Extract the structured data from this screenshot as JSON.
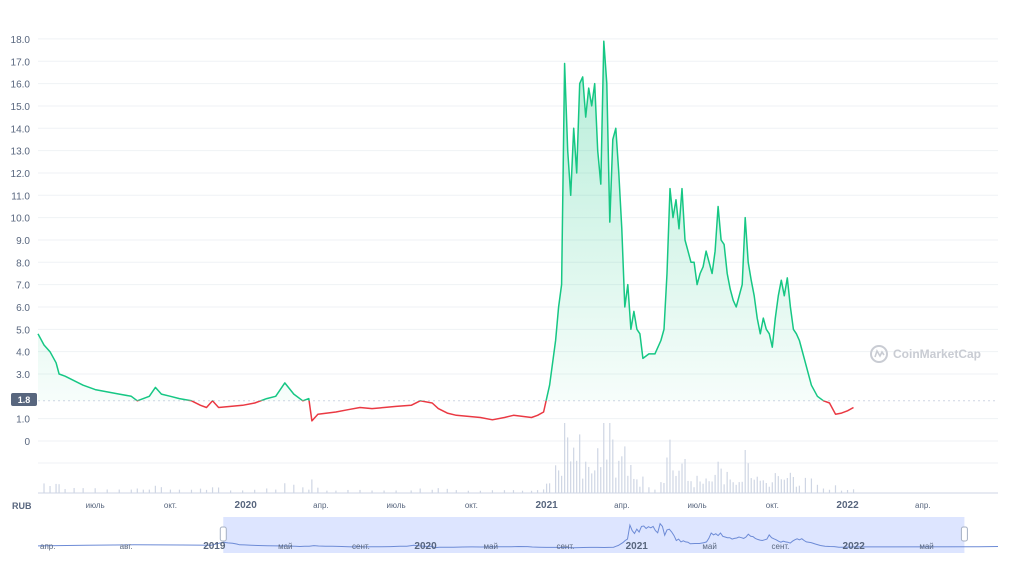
{
  "watermark": "CoinMarketCap",
  "currency_unit": "RUB",
  "current_price_label": "1.8",
  "colors": {
    "up": "#16c784",
    "down": "#ea3943",
    "area_top": "#16c784",
    "grid": "#eff2f5",
    "volume": "#cfd6e4",
    "navigator_fill": "#dde5ff",
    "navigator_line": "#6d8bd6",
    "label_bg": "#58667e"
  },
  "chart_data": {
    "type": "line",
    "title": "",
    "xlabel": "",
    "ylabel": "",
    "y_tick_labels": [
      "0",
      "1.0",
      "1.8",
      "3.0",
      "4.0",
      "5.0",
      "6.0",
      "7.0",
      "8.0",
      "9.0",
      "10.0",
      "11.0",
      "12.0",
      "13.0",
      "14.0",
      "15.0",
      "16.0",
      "17.0",
      "18.0"
    ],
    "ylim": [
      0,
      18.4
    ],
    "baseline_price": 1.8,
    "x_tick_labels": [
      {
        "label": "июль",
        "x": 2019.5,
        "year": false
      },
      {
        "label": "окт.",
        "x": 2019.75,
        "year": false
      },
      {
        "label": "2020",
        "x": 2020.0,
        "year": true
      },
      {
        "label": "апр.",
        "x": 2020.25,
        "year": false
      },
      {
        "label": "июль",
        "x": 2020.5,
        "year": false
      },
      {
        "label": "окт.",
        "x": 2020.75,
        "year": false
      },
      {
        "label": "2021",
        "x": 2021.0,
        "year": true
      },
      {
        "label": "апр.",
        "x": 2021.25,
        "year": false
      },
      {
        "label": "июль",
        "x": 2021.5,
        "year": false
      },
      {
        "label": "окт.",
        "x": 2021.75,
        "year": false
      },
      {
        "label": "2022",
        "x": 2022.0,
        "year": true
      },
      {
        "label": "апр.",
        "x": 2022.25,
        "year": false
      }
    ],
    "xlim": [
      2019.31,
      2022.5
    ],
    "grid": true,
    "series": [
      {
        "values": [
          [
            2019.31,
            4.8
          ],
          [
            2019.33,
            4.3
          ],
          [
            2019.35,
            4.0
          ],
          [
            2019.37,
            3.5
          ],
          [
            2019.38,
            3.0
          ],
          [
            2019.4,
            2.9
          ],
          [
            2019.43,
            2.7
          ],
          [
            2019.46,
            2.5
          ],
          [
            2019.5,
            2.3
          ],
          [
            2019.54,
            2.2
          ],
          [
            2019.58,
            2.1
          ],
          [
            2019.62,
            2.0
          ],
          [
            2019.64,
            1.8
          ],
          [
            2019.66,
            1.9
          ],
          [
            2019.68,
            2.0
          ],
          [
            2019.7,
            2.4
          ],
          [
            2019.72,
            2.1
          ],
          [
            2019.75,
            2.0
          ],
          [
            2019.78,
            1.9
          ],
          [
            2019.82,
            1.8
          ],
          [
            2019.85,
            1.6
          ],
          [
            2019.87,
            1.5
          ],
          [
            2019.89,
            1.8
          ],
          [
            2019.91,
            1.5
          ],
          [
            2019.95,
            1.55
          ],
          [
            2019.99,
            1.6
          ],
          [
            2020.03,
            1.7
          ],
          [
            2020.07,
            1.9
          ],
          [
            2020.1,
            2.0
          ],
          [
            2020.13,
            2.6
          ],
          [
            2020.16,
            2.1
          ],
          [
            2020.19,
            1.8
          ],
          [
            2020.21,
            1.9
          ],
          [
            2020.22,
            0.9
          ],
          [
            2020.24,
            1.2
          ],
          [
            2020.27,
            1.25
          ],
          [
            2020.3,
            1.3
          ],
          [
            2020.34,
            1.4
          ],
          [
            2020.38,
            1.5
          ],
          [
            2020.42,
            1.45
          ],
          [
            2020.46,
            1.5
          ],
          [
            2020.5,
            1.55
          ],
          [
            2020.55,
            1.6
          ],
          [
            2020.58,
            1.8
          ],
          [
            2020.62,
            1.7
          ],
          [
            2020.64,
            1.45
          ],
          [
            2020.67,
            1.25
          ],
          [
            2020.7,
            1.15
          ],
          [
            2020.74,
            1.1
          ],
          [
            2020.78,
            1.05
          ],
          [
            2020.82,
            0.95
          ],
          [
            2020.86,
            1.05
          ],
          [
            2020.89,
            1.15
          ],
          [
            2020.92,
            1.1
          ],
          [
            2020.95,
            1.05
          ],
          [
            2020.97,
            1.15
          ],
          [
            2020.99,
            1.3
          ],
          [
            2021.0,
            1.9
          ],
          [
            2021.01,
            2.5
          ],
          [
            2021.03,
            4.5
          ],
          [
            2021.04,
            6.0
          ],
          [
            2021.05,
            7.0
          ],
          [
            2021.06,
            16.9
          ],
          [
            2021.07,
            13.0
          ],
          [
            2021.08,
            11.0
          ],
          [
            2021.09,
            14.0
          ],
          [
            2021.1,
            12.0
          ],
          [
            2021.11,
            16.0
          ],
          [
            2021.12,
            16.3
          ],
          [
            2021.13,
            14.5
          ],
          [
            2021.14,
            15.8
          ],
          [
            2021.15,
            15.0
          ],
          [
            2021.16,
            16.0
          ],
          [
            2021.17,
            13.0
          ],
          [
            2021.18,
            11.5
          ],
          [
            2021.19,
            17.9
          ],
          [
            2021.2,
            16.0
          ],
          [
            2021.21,
            9.8
          ],
          [
            2021.22,
            13.5
          ],
          [
            2021.23,
            14.0
          ],
          [
            2021.24,
            12.0
          ],
          [
            2021.25,
            9.5
          ],
          [
            2021.26,
            6.0
          ],
          [
            2021.27,
            7.0
          ],
          [
            2021.28,
            5.0
          ],
          [
            2021.29,
            5.8
          ],
          [
            2021.3,
            5.0
          ],
          [
            2021.31,
            4.8
          ],
          [
            2021.32,
            3.7
          ],
          [
            2021.34,
            3.9
          ],
          [
            2021.36,
            3.9
          ],
          [
            2021.38,
            4.5
          ],
          [
            2021.39,
            5.0
          ],
          [
            2021.4,
            7.5
          ],
          [
            2021.41,
            11.3
          ],
          [
            2021.42,
            10.0
          ],
          [
            2021.43,
            10.8
          ],
          [
            2021.44,
            9.5
          ],
          [
            2021.45,
            11.3
          ],
          [
            2021.46,
            9.0
          ],
          [
            2021.47,
            8.5
          ],
          [
            2021.48,
            8.0
          ],
          [
            2021.49,
            8.0
          ],
          [
            2021.5,
            7.0
          ],
          [
            2021.51,
            7.5
          ],
          [
            2021.52,
            7.8
          ],
          [
            2021.53,
            8.5
          ],
          [
            2021.54,
            8.0
          ],
          [
            2021.55,
            7.5
          ],
          [
            2021.56,
            8.5
          ],
          [
            2021.57,
            10.5
          ],
          [
            2021.58,
            9.0
          ],
          [
            2021.59,
            8.8
          ],
          [
            2021.6,
            7.5
          ],
          [
            2021.61,
            6.8
          ],
          [
            2021.62,
            6.3
          ],
          [
            2021.63,
            6.0
          ],
          [
            2021.64,
            6.5
          ],
          [
            2021.65,
            7.0
          ],
          [
            2021.66,
            10.0
          ],
          [
            2021.67,
            8.0
          ],
          [
            2021.68,
            7.2
          ],
          [
            2021.69,
            6.5
          ],
          [
            2021.7,
            5.5
          ],
          [
            2021.71,
            4.8
          ],
          [
            2021.72,
            5.5
          ],
          [
            2021.73,
            5.0
          ],
          [
            2021.74,
            4.8
          ],
          [
            2021.75,
            4.2
          ],
          [
            2021.76,
            5.5
          ],
          [
            2021.77,
            6.5
          ],
          [
            2021.78,
            7.2
          ],
          [
            2021.79,
            6.5
          ],
          [
            2021.8,
            7.3
          ],
          [
            2021.81,
            6.0
          ],
          [
            2021.82,
            5.0
          ],
          [
            2021.83,
            4.8
          ],
          [
            2021.84,
            4.5
          ],
          [
            2021.86,
            3.5
          ],
          [
            2021.88,
            2.5
          ],
          [
            2021.9,
            2.0
          ],
          [
            2021.92,
            1.8
          ],
          [
            2021.94,
            1.7
          ],
          [
            2021.96,
            1.2
          ],
          [
            2021.98,
            1.25
          ],
          [
            2022.0,
            1.35
          ],
          [
            2022.02,
            1.5
          ]
        ]
      }
    ],
    "navigator": {
      "tick_labels": [
        {
          "label": "апр.",
          "x": 0.0,
          "year": false
        },
        {
          "label": "авг.",
          "x": 0.083,
          "year": false
        },
        {
          "label": "2019",
          "x": 0.17,
          "year": true
        },
        {
          "label": "май",
          "x": 0.248,
          "year": false
        },
        {
          "label": "сент.",
          "x": 0.325,
          "year": false
        },
        {
          "label": "2020",
          "x": 0.39,
          "year": true
        },
        {
          "label": "май",
          "x": 0.462,
          "year": false
        },
        {
          "label": "сент.",
          "x": 0.538,
          "year": false
        },
        {
          "label": "2021",
          "x": 0.61,
          "year": true
        },
        {
          "label": "май",
          "x": 0.69,
          "year": false
        },
        {
          "label": "сент.",
          "x": 0.762,
          "year": false
        },
        {
          "label": "2022",
          "x": 0.836,
          "year": true
        },
        {
          "label": "май",
          "x": 0.916,
          "year": false
        }
      ],
      "selected_range": [
        0.193,
        0.965
      ]
    }
  }
}
